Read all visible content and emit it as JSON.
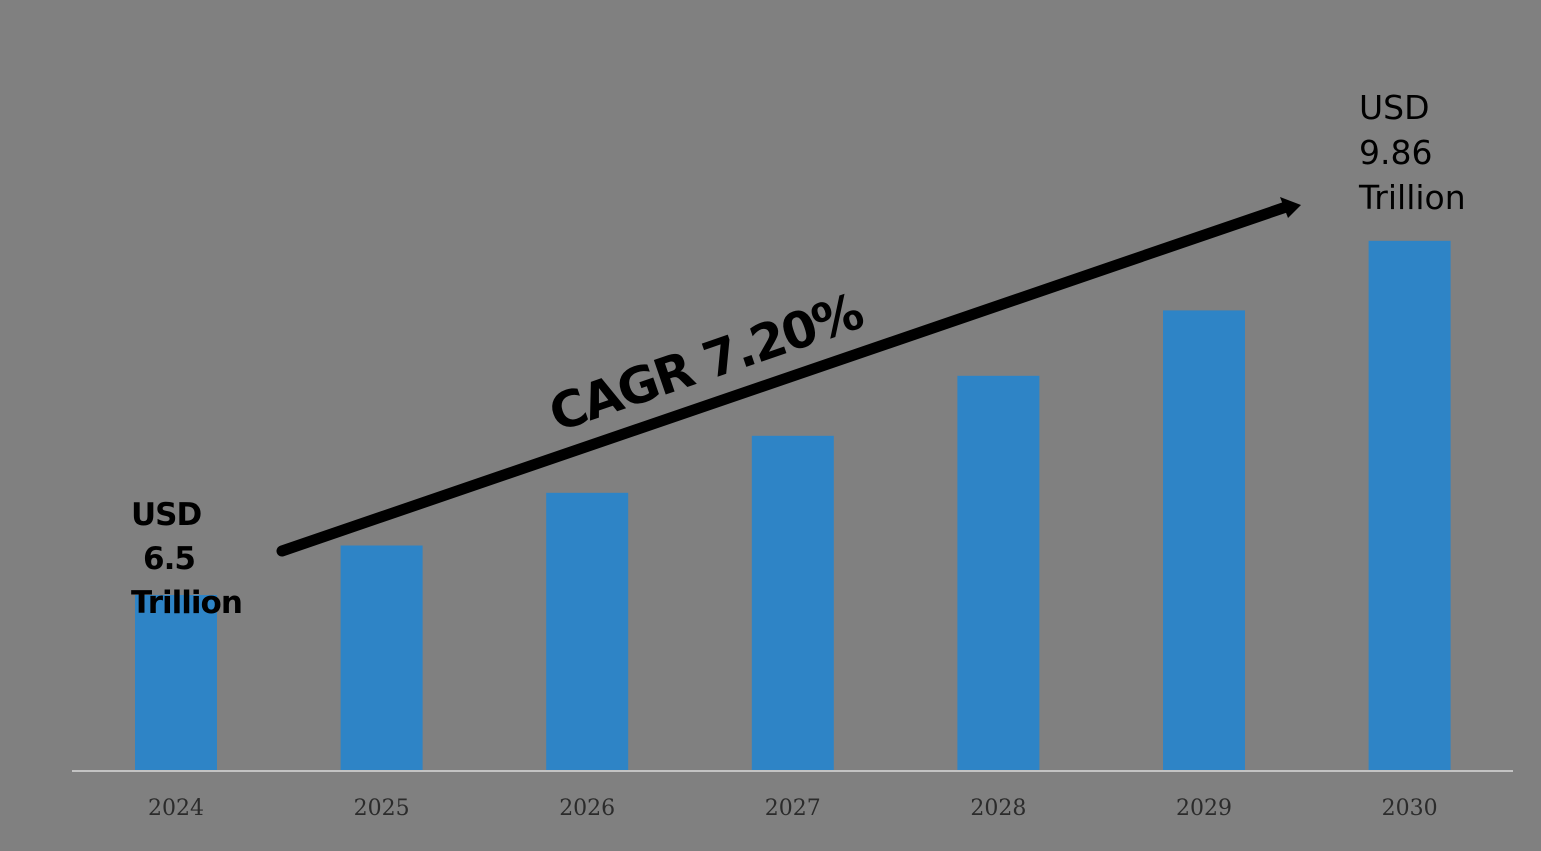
{
  "chart_data": {
    "type": "bar",
    "categories": [
      "2024",
      "2025",
      "2026",
      "2027",
      "2028",
      "2029",
      "2030"
    ],
    "values": [
      6.5,
      6.97,
      7.47,
      8.01,
      8.58,
      9.2,
      9.86
    ],
    "ylim": [
      4.84,
      10.2
    ],
    "grid": false,
    "bar_color": "#2e84c6",
    "background_color": "#808080",
    "annotations": {
      "start_line1": "USD",
      "start_line2": "6.5",
      "start_line3": "Trillion",
      "end_line1": "USD",
      "end_line2": "9.86",
      "end_line3": "Trillion",
      "cagr": "CAGR 7.20%"
    }
  }
}
